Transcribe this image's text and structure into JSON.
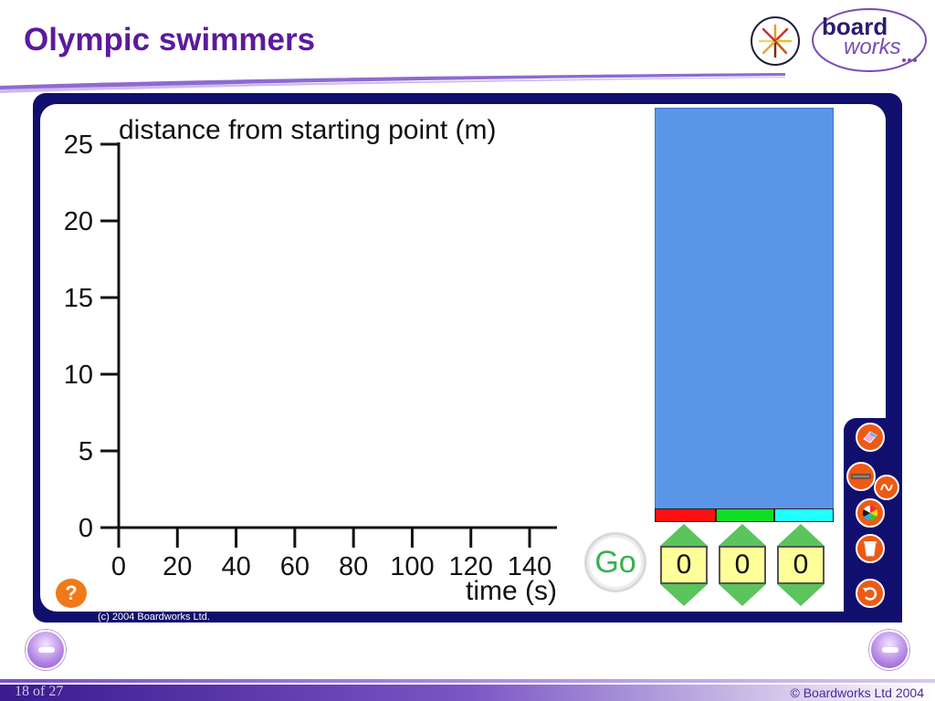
{
  "slide": {
    "title": "Olympic swimmers",
    "page_indicator": "18 of 27",
    "footer_copyright": "© Boardworks Ltd 2004",
    "inner_copyright": "(c) 2004 Boardworks Ltd."
  },
  "logo": {
    "board": "board",
    "works": "works"
  },
  "chart_data": {
    "type": "line",
    "ylabel": "distance from starting point (m)",
    "xlabel": "time (s)",
    "xlim": [
      0,
      140
    ],
    "ylim": [
      0,
      25
    ],
    "x_ticks": [
      "0",
      "20",
      "40",
      "60",
      "80",
      "100",
      "120",
      "140"
    ],
    "y_ticks": [
      "0",
      "5",
      "10",
      "15",
      "20",
      "25"
    ],
    "series": []
  },
  "controls": {
    "go_label": "Go",
    "help_label": "?",
    "steppers": [
      {
        "lane_color": "#ff1111",
        "value": "0"
      },
      {
        "lane_color": "#11dd22",
        "value": "0"
      },
      {
        "lane_color": "#22ffff",
        "value": "0"
      }
    ]
  },
  "colors": {
    "title": "#5b1a9c",
    "frame": "#100f6e",
    "pool": "#5b95e7",
    "tool_button": "#ee5a14",
    "go_text": "#37b24d",
    "stepper_arrow": "#5cc45c",
    "stepper_box": "#ffff99"
  },
  "tools": [
    "eraser-icon",
    "pen-icon",
    "curve-icon",
    "color-wheel-icon",
    "bin-icon",
    "undo-icon"
  ]
}
